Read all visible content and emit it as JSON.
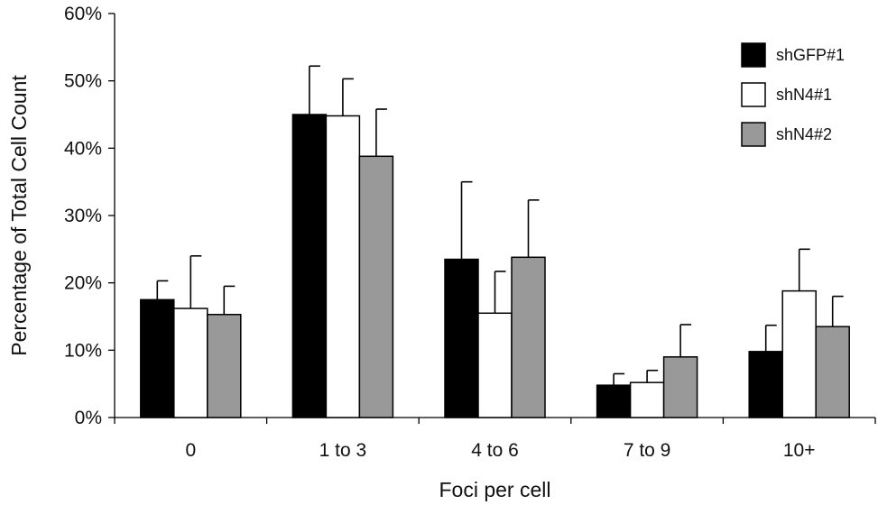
{
  "chart_data": {
    "type": "bar",
    "title": "",
    "xlabel": "Foci per cell",
    "ylabel": "Percentage of Total Cell Count",
    "categories": [
      "0",
      "1 to 3",
      "4 to 6",
      "7 to 9",
      "10+"
    ],
    "ylim": [
      0,
      60
    ],
    "y_ticks": [
      0,
      10,
      20,
      30,
      40,
      50,
      60
    ],
    "y_tick_labels": [
      "0%",
      "10%",
      "20%",
      "30%",
      "40%",
      "50%",
      "60%"
    ],
    "grid": false,
    "legend_position": "top-right",
    "series": [
      {
        "name": "shGFP#1",
        "color": "#000000",
        "values": [
          17.5,
          45.0,
          23.5,
          4.8,
          9.8
        ],
        "errors": [
          2.8,
          7.2,
          11.5,
          1.7,
          3.9
        ]
      },
      {
        "name": "shN4#1",
        "color": "#ffffff",
        "values": [
          16.2,
          44.8,
          15.5,
          5.2,
          18.8
        ],
        "errors": [
          7.8,
          5.5,
          6.2,
          1.8,
          6.2
        ]
      },
      {
        "name": "shN4#2",
        "color": "#999999",
        "values": [
          15.3,
          38.8,
          23.8,
          9.0,
          13.5
        ],
        "errors": [
          4.2,
          7.0,
          8.5,
          4.8,
          4.5
        ]
      }
    ]
  }
}
